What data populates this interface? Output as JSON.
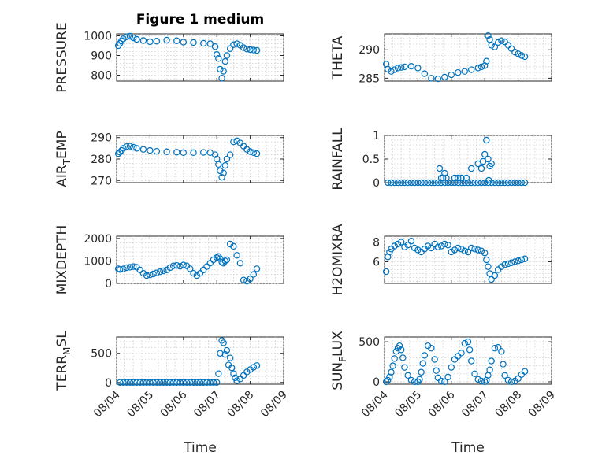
{
  "figure_title": "Figure 1 medium",
  "colors": {
    "marker": "#0072BD",
    "axis": "#262626"
  },
  "chart_data": [
    {
      "type": "scatter",
      "title": "Figure 1 medium",
      "ylabel": "PRESSURE",
      "ylabel_parts": [
        "PRESSURE"
      ],
      "ylim": [
        770,
        1010
      ],
      "yticks": [
        800,
        900,
        1000
      ],
      "ytick_labels": [
        "800",
        "900",
        "1000"
      ],
      "x": [
        0.05,
        0.1,
        0.15,
        0.2,
        0.3,
        0.4,
        0.5,
        0.6,
        0.8,
        1.0,
        1.2,
        1.5,
        1.8,
        2.0,
        2.3,
        2.6,
        2.8,
        2.95,
        3.0,
        3.05,
        3.1,
        3.15,
        3.2,
        3.25,
        3.3,
        3.4,
        3.5,
        3.6,
        3.7,
        3.8,
        3.9,
        4.0,
        4.1,
        4.2
      ],
      "y": [
        950,
        962,
        975,
        985,
        995,
        998,
        990,
        982,
        976,
        970,
        973,
        978,
        975,
        968,
        966,
        962,
        960,
        945,
        905,
        885,
        830,
        785,
        820,
        870,
        900,
        935,
        955,
        960,
        952,
        940,
        933,
        930,
        928,
        926
      ]
    },
    {
      "type": "scatter",
      "ylabel": "THETA",
      "ylabel_parts": [
        "THETA"
      ],
      "ylim": [
        284.5,
        292.8
      ],
      "yticks": [
        285,
        290
      ],
      "ytick_labels": [
        "285",
        "290"
      ],
      "x": [
        0.05,
        0.1,
        0.2,
        0.3,
        0.4,
        0.5,
        0.6,
        0.8,
        1.0,
        1.2,
        1.4,
        1.6,
        1.8,
        2.0,
        2.2,
        2.4,
        2.6,
        2.8,
        2.9,
        3.0,
        3.05,
        3.1,
        3.15,
        3.2,
        3.3,
        3.4,
        3.5,
        3.6,
        3.7,
        3.8,
        3.9,
        4.0,
        4.1,
        4.2
      ],
      "y": [
        287.5,
        286.6,
        286.2,
        286.5,
        286.8,
        286.9,
        287.0,
        287.1,
        286.8,
        285.8,
        285.0,
        284.9,
        285.2,
        285.6,
        286.0,
        286.2,
        286.5,
        286.8,
        287.0,
        287.2,
        288.0,
        292.5,
        291.8,
        290.8,
        290.5,
        291.3,
        291.6,
        291.4,
        290.8,
        290.2,
        289.6,
        289.3,
        289.0,
        288.8
      ]
    },
    {
      "type": "scatter",
      "ylabel": "AIR_TEMP",
      "ylabel_parts": [
        "AIR",
        "T",
        "EMP"
      ],
      "ylim": [
        269,
        291
      ],
      "yticks": [
        270,
        280,
        290
      ],
      "ytick_labels": [
        "270",
        "280",
        "290"
      ],
      "x": [
        0.05,
        0.1,
        0.15,
        0.2,
        0.3,
        0.4,
        0.5,
        0.6,
        0.8,
        1.0,
        1.2,
        1.5,
        1.8,
        2.0,
        2.3,
        2.6,
        2.8,
        2.95,
        3.0,
        3.05,
        3.1,
        3.15,
        3.2,
        3.25,
        3.3,
        3.4,
        3.5,
        3.6,
        3.7,
        3.8,
        3.9,
        4.0,
        4.1,
        4.2
      ],
      "y": [
        282.5,
        283.2,
        284.0,
        285.0,
        285.8,
        286.0,
        285.5,
        285.0,
        284.5,
        284.0,
        283.6,
        283.4,
        283.2,
        283.0,
        283.0,
        283.1,
        283.0,
        282.0,
        280.0,
        277.5,
        274.5,
        271.5,
        273.5,
        277.0,
        280.0,
        282.0,
        288.0,
        288.5,
        287.5,
        286.0,
        284.5,
        283.5,
        283.0,
        282.5
      ]
    },
    {
      "type": "scatter",
      "ylabel": "RAINFALL",
      "ylabel_parts": [
        "RAINFALL"
      ],
      "ylim": [
        0,
        1
      ],
      "yticks": [
        0,
        0.5,
        1
      ],
      "ytick_labels": [
        "0",
        "0.5",
        "1"
      ],
      "x": [
        0.1,
        0.2,
        0.3,
        0.4,
        0.5,
        0.6,
        0.7,
        0.8,
        0.9,
        1.0,
        1.1,
        1.2,
        1.3,
        1.4,
        1.5,
        1.6,
        1.7,
        1.8,
        1.9,
        2.0,
        2.1,
        2.2,
        2.3,
        2.4,
        2.5,
        2.6,
        2.7,
        2.8,
        2.9,
        3.0,
        3.1,
        3.2,
        3.3,
        3.4,
        3.5,
        3.6,
        3.7,
        3.8,
        3.9,
        4.0,
        4.1,
        4.2,
        1.65,
        1.7,
        1.75,
        1.8,
        1.85,
        2.1,
        2.2,
        2.3,
        2.45,
        2.6,
        2.8,
        2.9,
        2.95,
        3.0,
        3.05,
        3.1,
        3.12,
        3.15,
        3.2
      ],
      "y": [
        0,
        0,
        0,
        0,
        0,
        0,
        0,
        0,
        0,
        0,
        0,
        0,
        0,
        0,
        0,
        0,
        0,
        0,
        0,
        0,
        0,
        0,
        0,
        0,
        0,
        0,
        0,
        0,
        0,
        0,
        0,
        0,
        0,
        0,
        0,
        0,
        0,
        0,
        0,
        0,
        0,
        0,
        0.3,
        0.1,
        0.1,
        0.2,
        0.1,
        0.1,
        0.1,
        0.1,
        0.1,
        0.3,
        0.4,
        0.3,
        0.45,
        0.6,
        0.9,
        0.5,
        0.05,
        0.35,
        0.4
      ]
    },
    {
      "type": "scatter",
      "ylabel": "MIXDEPTH",
      "ylabel_parts": [
        "MIXDEPTH"
      ],
      "ylim": [
        0,
        2100
      ],
      "yticks": [
        0,
        1000,
        2000
      ],
      "ytick_labels": [
        "0",
        "1000",
        "2000"
      ],
      "x": [
        0.05,
        0.1,
        0.2,
        0.3,
        0.4,
        0.5,
        0.6,
        0.7,
        0.8,
        0.9,
        1.0,
        1.1,
        1.2,
        1.3,
        1.4,
        1.5,
        1.6,
        1.7,
        1.8,
        1.9,
        2.0,
        2.1,
        2.2,
        2.3,
        2.4,
        2.5,
        2.6,
        2.7,
        2.8,
        2.9,
        3.0,
        3.05,
        3.1,
        3.15,
        3.2,
        3.25,
        3.3,
        3.4,
        3.5,
        3.6,
        3.7,
        3.8,
        3.9,
        4.0,
        4.1,
        4.2
      ],
      "y": [
        650,
        620,
        640,
        700,
        720,
        750,
        720,
        600,
        450,
        350,
        380,
        420,
        470,
        520,
        560,
        600,
        700,
        780,
        800,
        760,
        820,
        780,
        650,
        450,
        350,
        450,
        600,
        750,
        900,
        1050,
        1150,
        1200,
        1100,
        950,
        900,
        1000,
        1050,
        1750,
        1650,
        1250,
        900,
        150,
        100,
        200,
        400,
        650
      ]
    },
    {
      "type": "scatter",
      "ylabel": "H2OMIXRA",
      "ylabel_parts": [
        "H2OMIXRA"
      ],
      "ylim": [
        3.8,
        8.6
      ],
      "yticks": [
        6,
        8
      ],
      "ytick_labels": [
        "6",
        "8"
      ],
      "x": [
        0.05,
        0.1,
        0.15,
        0.2,
        0.3,
        0.4,
        0.5,
        0.6,
        0.7,
        0.8,
        0.9,
        1.0,
        1.1,
        1.2,
        1.3,
        1.4,
        1.5,
        1.6,
        1.7,
        1.8,
        1.9,
        2.0,
        2.1,
        2.2,
        2.3,
        2.4,
        2.5,
        2.6,
        2.7,
        2.8,
        2.9,
        3.0,
        3.05,
        3.1,
        3.15,
        3.2,
        3.3,
        3.4,
        3.5,
        3.6,
        3.7,
        3.8,
        3.9,
        4.0,
        4.1,
        4.2
      ],
      "y": [
        5.0,
        6.5,
        7.0,
        7.3,
        7.6,
        7.8,
        8.0,
        7.5,
        7.7,
        8.1,
        7.4,
        7.2,
        7.0,
        7.3,
        7.6,
        7.4,
        7.8,
        7.5,
        7.6,
        7.8,
        7.7,
        7.0,
        7.2,
        7.4,
        7.3,
        7.1,
        7.0,
        7.4,
        7.3,
        7.2,
        7.1,
        6.9,
        6.2,
        5.5,
        4.8,
        4.2,
        4.6,
        5.2,
        5.5,
        5.7,
        5.8,
        5.9,
        6.0,
        6.1,
        6.2,
        6.3
      ]
    },
    {
      "type": "scatter",
      "ylabel": "TERR_MSL",
      "ylabel_parts": [
        "TERR",
        "M",
        "SL"
      ],
      "ylim": [
        -30,
        780
      ],
      "yticks": [
        0,
        500
      ],
      "ytick_labels": [
        "0",
        "500"
      ],
      "x": [
        0.1,
        0.2,
        0.3,
        0.4,
        0.5,
        0.6,
        0.7,
        0.8,
        0.9,
        1.0,
        1.1,
        1.2,
        1.3,
        1.4,
        1.5,
        1.6,
        1.7,
        1.8,
        1.9,
        2.0,
        2.1,
        2.2,
        2.3,
        2.4,
        2.5,
        2.6,
        2.7,
        2.8,
        2.9,
        3.0,
        3.05,
        3.1,
        3.15,
        3.2,
        3.25,
        3.3,
        3.35,
        3.4,
        3.45,
        3.5,
        3.55,
        3.6,
        3.7,
        3.8,
        3.9,
        4.0,
        4.1,
        4.2
      ],
      "y": [
        0,
        0,
        0,
        0,
        0,
        0,
        0,
        0,
        0,
        0,
        0,
        0,
        0,
        0,
        0,
        0,
        0,
        0,
        0,
        0,
        0,
        0,
        0,
        0,
        0,
        0,
        0,
        0,
        0,
        0,
        150,
        500,
        720,
        680,
        480,
        550,
        300,
        420,
        250,
        150,
        80,
        30,
        60,
        120,
        180,
        220,
        260,
        290
      ]
    },
    {
      "type": "scatter",
      "ylabel": "SUN_FLUX",
      "ylabel_parts": [
        "SUN",
        "F",
        "LUX"
      ],
      "ylim": [
        -30,
        560
      ],
      "yticks": [
        0,
        500
      ],
      "ytick_labels": [
        "0",
        "500"
      ],
      "x": [
        0.05,
        0.1,
        0.15,
        0.2,
        0.25,
        0.3,
        0.35,
        0.4,
        0.45,
        0.5,
        0.55,
        0.6,
        0.7,
        0.8,
        0.9,
        1.0,
        1.05,
        1.1,
        1.15,
        1.2,
        1.3,
        1.4,
        1.5,
        1.55,
        1.6,
        1.7,
        1.8,
        1.9,
        2.0,
        2.1,
        2.2,
        2.3,
        2.4,
        2.5,
        2.55,
        2.6,
        2.7,
        2.8,
        2.9,
        3.0,
        3.05,
        3.1,
        3.15,
        3.2,
        3.3,
        3.4,
        3.5,
        3.55,
        3.6,
        3.7,
        3.8,
        3.9,
        4.0,
        4.1,
        4.2
      ],
      "y": [
        0,
        20,
        60,
        120,
        200,
        290,
        380,
        420,
        450,
        400,
        300,
        180,
        80,
        20,
        0,
        0,
        30,
        120,
        230,
        330,
        450,
        420,
        280,
        140,
        50,
        10,
        0,
        60,
        180,
        280,
        320,
        360,
        480,
        500,
        400,
        260,
        100,
        30,
        10,
        0,
        20,
        80,
        150,
        260,
        420,
        430,
        380,
        220,
        80,
        20,
        0,
        10,
        40,
        90,
        130
      ]
    }
  ],
  "x_axis": {
    "ticks": [
      0,
      1,
      2,
      3,
      4,
      5
    ],
    "tick_labels": [
      "08/04",
      "08/05",
      "08/06",
      "08/07",
      "08/08",
      "08/09"
    ],
    "xlim": [
      0,
      5
    ],
    "label": "Time"
  }
}
